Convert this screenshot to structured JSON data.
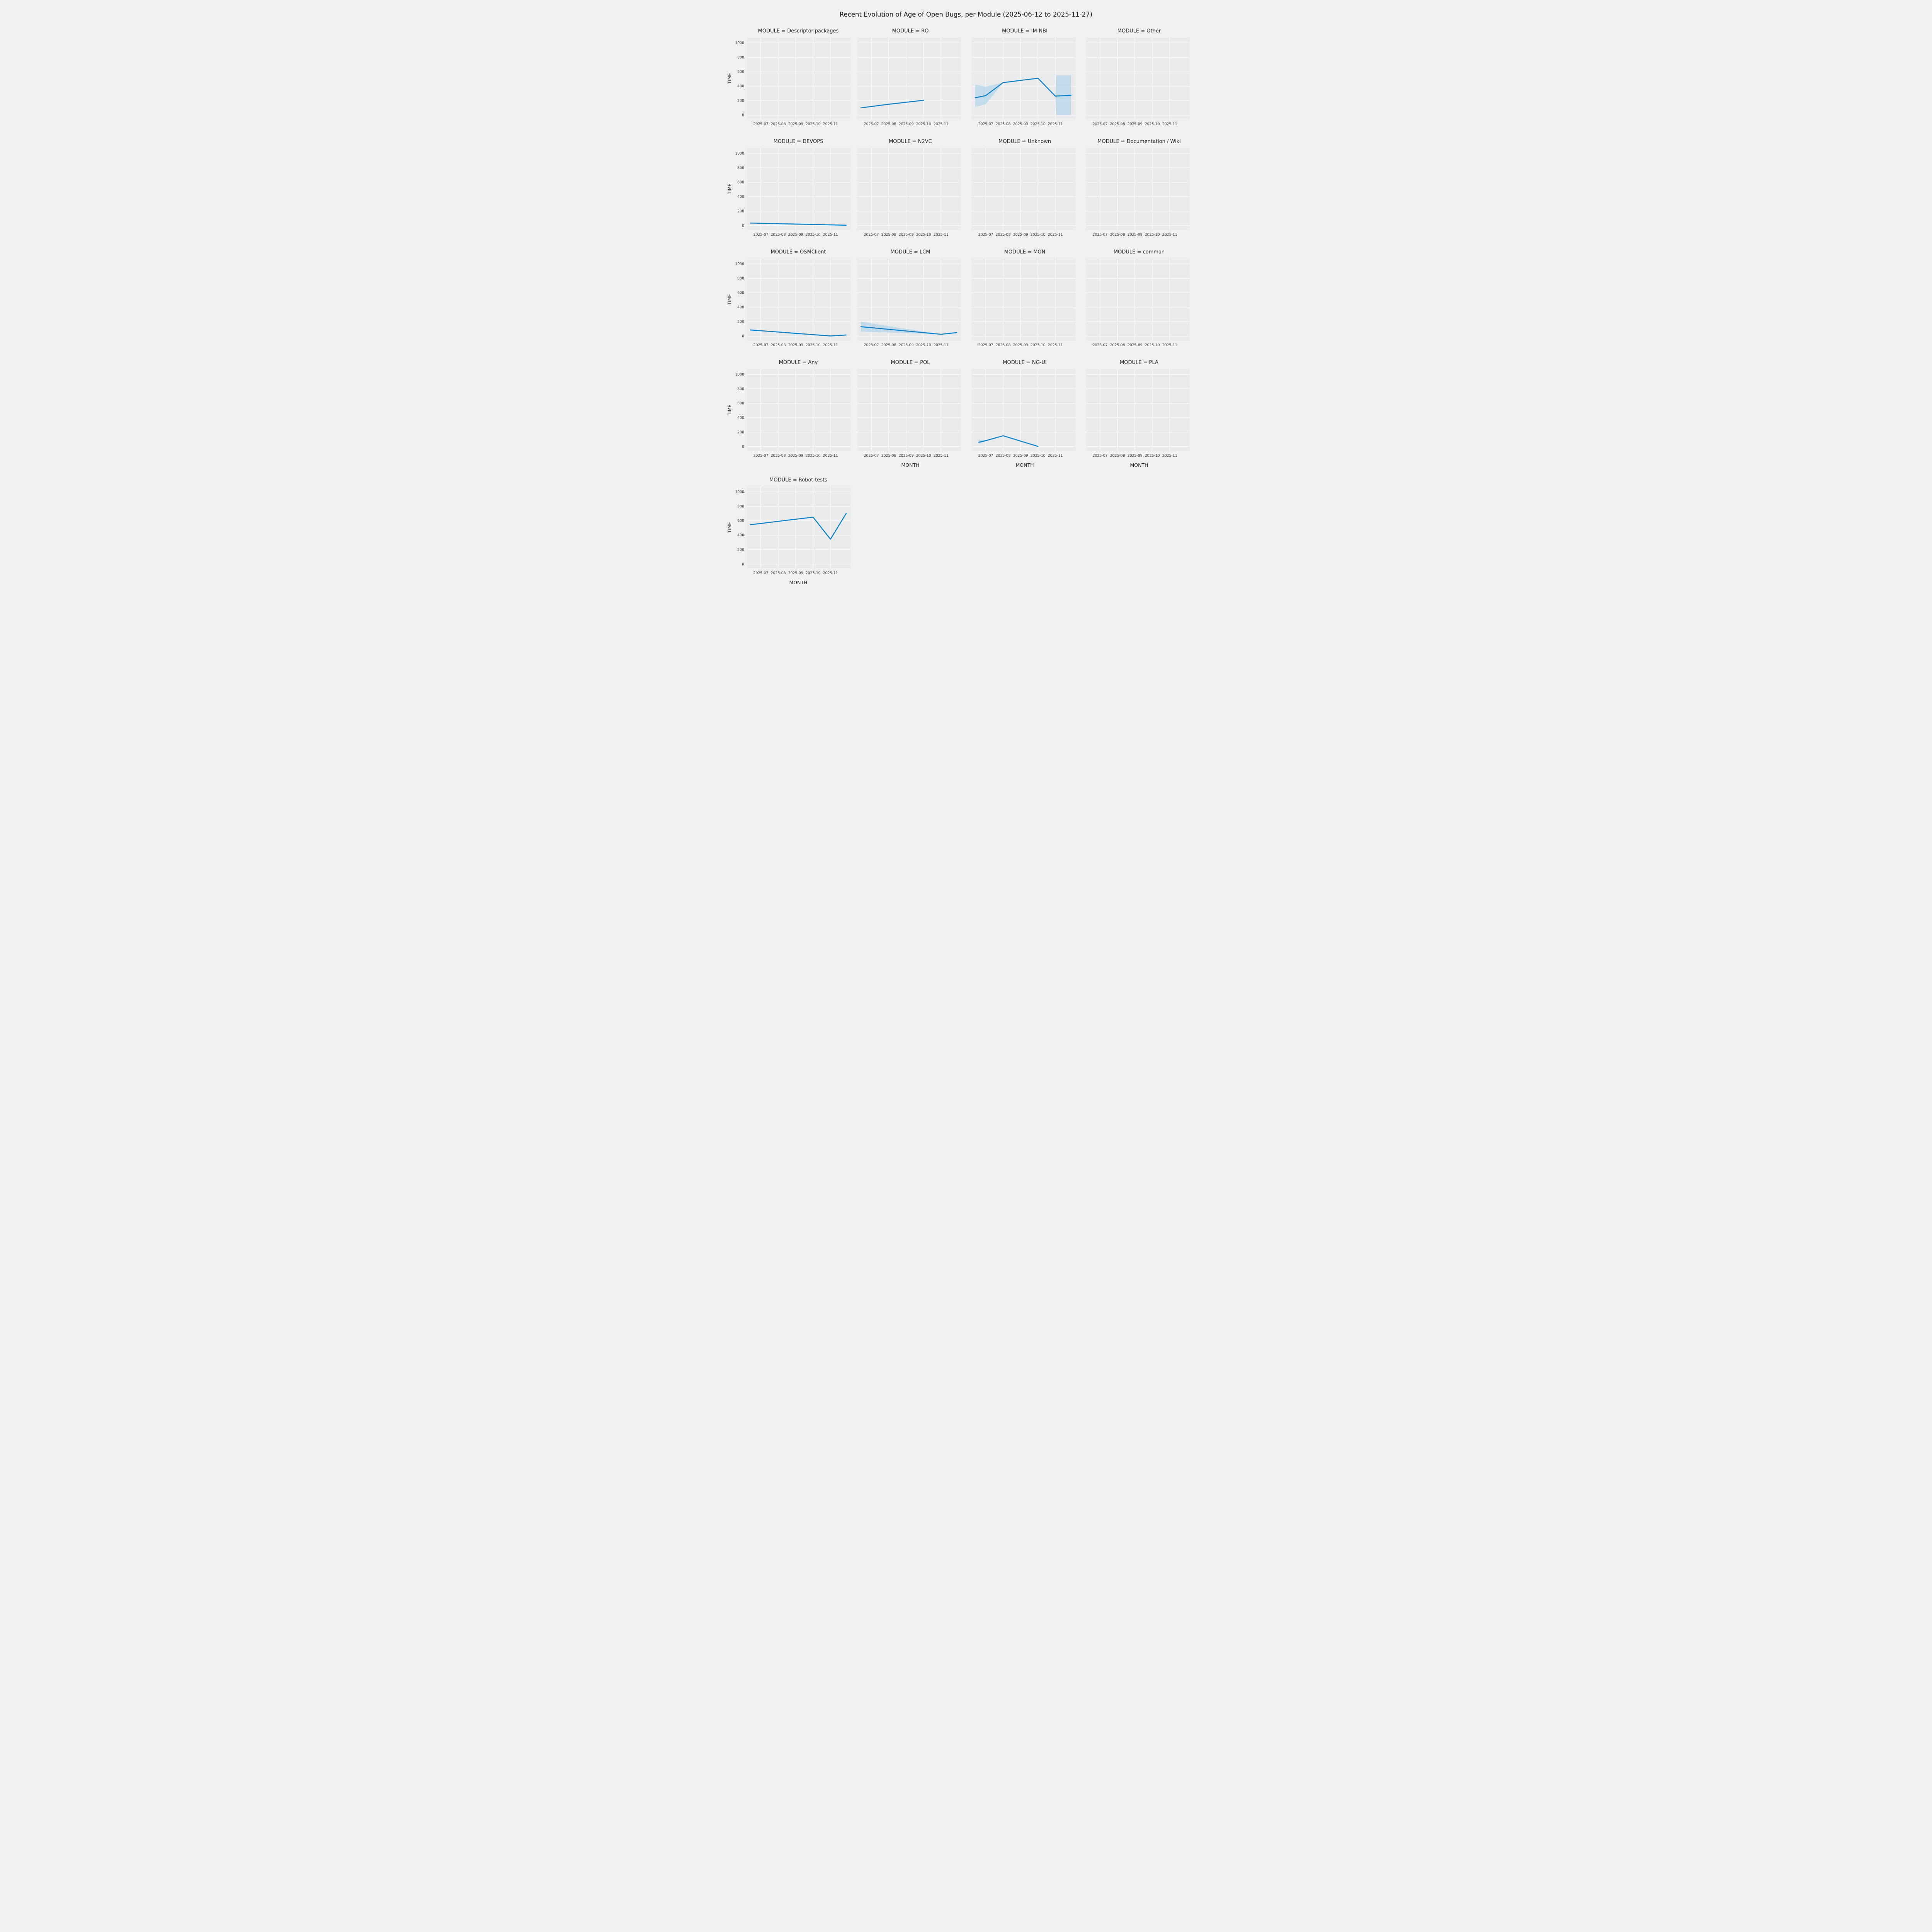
{
  "title": "Recent Evolution of Age of Open Bugs, per Module (2025-06-12 to 2025-11-27)",
  "chart_data": {
    "type": "line",
    "title": "Recent Evolution of Age of Open Bugs, per Module (2025-06-12 to 2025-11-27)",
    "xlabel": "MONTH",
    "ylabel": "TIME",
    "facet_variable": "MODULE",
    "x_unit": "month of 2025 (decimal, 6.4 = 2025-06-12, 11.9 = 2025-11-27)",
    "xlim": [
      6.2,
      12.15
    ],
    "ylim": [
      0,
      1000
    ],
    "yticks": [
      0,
      200,
      400,
      600,
      800,
      1000
    ],
    "xticks": {
      "positions": [
        7,
        8,
        9,
        10,
        11
      ],
      "labels": [
        "2025-07",
        "2025-08",
        "2025-09",
        "2025-10",
        "2025-11"
      ]
    },
    "legend": "none",
    "grid": "on",
    "colors": {
      "line": "#1182c5",
      "band": "#aed2e9",
      "figure_bg": "#f0f0f0",
      "axes_bg": "#e9eaeb",
      "grid": "#fafafa",
      "tick_text": "#3a3a3a",
      "label_text": "#262626"
    },
    "facets": [
      {
        "label": "MODULE = Descriptor-packages",
        "module": "Descriptor-packages",
        "x": [],
        "y": []
      },
      {
        "label": "MODULE = RO",
        "module": "RO",
        "x": [
          6.4,
          8,
          10
        ],
        "y": [
          100,
          150,
          205
        ]
      },
      {
        "label": "MODULE = IM-NBI",
        "module": "IM-NBI",
        "x": [
          6.4,
          7,
          8,
          10,
          11,
          11.05,
          11.9
        ],
        "y": [
          240,
          270,
          450,
          510,
          263,
          263,
          275
        ],
        "band": {
          "low": [
            115,
            150,
            450,
            510,
            263,
            0,
            0
          ],
          "high": [
            420,
            395,
            450,
            510,
            263,
            550,
            550
          ]
        }
      },
      {
        "label": "MODULE = Other",
        "module": "Other",
        "x": [],
        "y": []
      },
      {
        "label": "MODULE = DEVOPS",
        "module": "DEVOPS",
        "x": [
          6.4,
          11.9
        ],
        "y": [
          35,
          5
        ]
      },
      {
        "label": "MODULE = N2VC",
        "module": "N2VC",
        "x": [],
        "y": []
      },
      {
        "label": "MODULE = Unknown",
        "module": "Unknown",
        "x": [],
        "y": []
      },
      {
        "label": "MODULE = Documentation / Wiki",
        "module": "Documentation / Wiki",
        "x": [],
        "y": []
      },
      {
        "label": "MODULE = OSMClient",
        "module": "OSMClient",
        "x": [
          6.4,
          11,
          11.9
        ],
        "y": [
          85,
          2,
          15
        ]
      },
      {
        "label": "MODULE = LCM",
        "module": "LCM",
        "x": [
          6.4,
          11,
          11.9
        ],
        "y": [
          130,
          25,
          48
        ],
        "band": {
          "low": [
            62,
            25,
            48
          ],
          "high": [
            200,
            25,
            48
          ]
        }
      },
      {
        "label": "MODULE = MON",
        "module": "MON",
        "x": [],
        "y": []
      },
      {
        "label": "MODULE = common",
        "module": "common",
        "x": [],
        "y": []
      },
      {
        "label": "MODULE = Any",
        "module": "Any",
        "x": [],
        "y": []
      },
      {
        "label": "MODULE = POL",
        "module": "POL",
        "x": [],
        "y": []
      },
      {
        "label": "MODULE = NG-UI",
        "module": "NG-UI",
        "x": [
          6.6,
          7,
          8,
          10
        ],
        "y": [
          60,
          82,
          150,
          3
        ],
        "band": {
          "low": [
            38,
            75,
            150,
            3
          ],
          "high": [
            95,
            92,
            150,
            3
          ]
        }
      },
      {
        "label": "MODULE = PLA",
        "module": "PLA",
        "x": [],
        "y": []
      },
      {
        "label": "MODULE = Robot-tests",
        "module": "Robot-tests",
        "x": [
          6.4,
          10,
          11,
          11.9
        ],
        "y": [
          545,
          650,
          345,
          700
        ]
      }
    ]
  }
}
